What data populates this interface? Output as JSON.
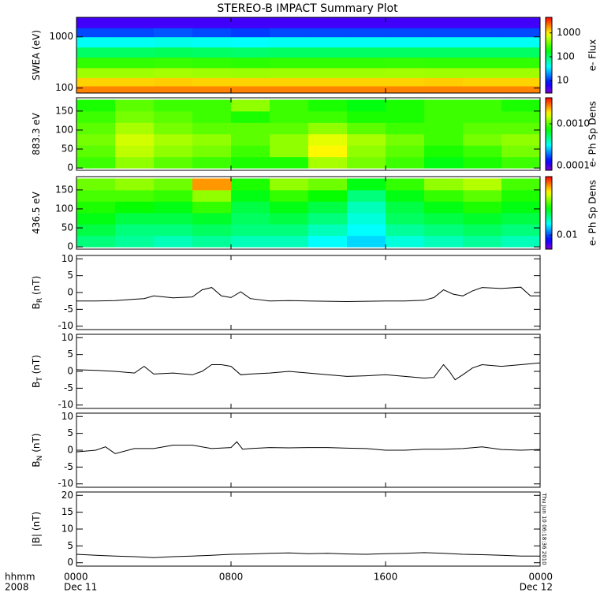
{
  "title": "STEREO-B IMPACT Summary Plot",
  "timestamp": "Thu Jun 10 06:18:36 2010",
  "xaxis": {
    "xlim": [
      0,
      24
    ],
    "xticks": [
      {
        "value": 0,
        "label": "0000"
      },
      {
        "value": 8,
        "label": "0800"
      },
      {
        "value": 16,
        "label": "1600"
      },
      {
        "value": 24,
        "label": "0000"
      }
    ],
    "unit_label": "hhmm",
    "year_label": "2008",
    "start_date": "Dec 11",
    "end_date": "Dec 12"
  },
  "chart_data": [
    {
      "type": "heatmap",
      "ylabel": "SWEA (eV)",
      "log_y": true,
      "ylim": [
        80,
        2400
      ],
      "yticks": [
        100,
        1000
      ],
      "colorbar_label": "e- Flux",
      "clim": [
        3,
        4500
      ],
      "cticks": [
        10,
        100,
        1000
      ],
      "log_c": true,
      "xbins": [
        0,
        2,
        4,
        6,
        8,
        10,
        12,
        14,
        16,
        18,
        20,
        22,
        24
      ],
      "ybins": [
        80,
        110,
        160,
        250,
        400,
        630,
        1000,
        1500,
        2400
      ],
      "values": [
        [
          2000,
          2000,
          2000,
          2000,
          2000,
          2000,
          2000,
          2000,
          2000,
          2000,
          2000,
          2000
        ],
        [
          1200,
          1200,
          1250,
          1200,
          1200,
          1200,
          1200,
          1200,
          1200,
          1250,
          1200,
          1200
        ],
        [
          500,
          500,
          520,
          500,
          490,
          500,
          500,
          500,
          510,
          500,
          500,
          500
        ],
        [
          250,
          250,
          260,
          250,
          240,
          250,
          250,
          250,
          255,
          250,
          250,
          250
        ],
        [
          100,
          100,
          105,
          100,
          95,
          100,
          100,
          100,
          100,
          100,
          100,
          100
        ],
        [
          40,
          40,
          42,
          40,
          38,
          40,
          40,
          40,
          40,
          40,
          40,
          40
        ],
        [
          12,
          12,
          13,
          12,
          11,
          12,
          12,
          12,
          12,
          12,
          12,
          12
        ],
        [
          5,
          5,
          5,
          5,
          5,
          5,
          5,
          5,
          5,
          5,
          5,
          5
        ]
      ]
    },
    {
      "type": "heatmap",
      "ylabel": "883.3 eV",
      "log_y": false,
      "ylim": [
        -6,
        185
      ],
      "yticks": [
        0,
        50,
        100,
        150
      ],
      "colorbar_label": "e- Ph Sp Dens",
      "clim": [
        7.7e-05,
        0.0042
      ],
      "log_c": true,
      "cticks": [
        0.0001,
        {
          "value": 0.001,
          "label": "0.0010"
        }
      ],
      "xbins": [
        0,
        2,
        4,
        6,
        8,
        10,
        12,
        14,
        16,
        18,
        20,
        22,
        24
      ],
      "ybins": [
        0,
        30,
        60,
        90,
        120,
        150,
        180
      ],
      "values": [
        [
          0.0009,
          0.0012,
          0.001,
          0.0009,
          0.0008,
          0.0008,
          0.0013,
          0.0011,
          0.0009,
          0.0007,
          0.0008,
          0.0009
        ],
        [
          0.001,
          0.0014,
          0.0012,
          0.0011,
          0.0009,
          0.0012,
          0.0018,
          0.0012,
          0.001,
          0.0008,
          0.0009,
          0.0011
        ],
        [
          0.0011,
          0.0015,
          0.0013,
          0.0012,
          0.001,
          0.0012,
          0.0016,
          0.0013,
          0.0011,
          0.0009,
          0.0011,
          0.0012
        ],
        [
          0.001,
          0.0013,
          0.0011,
          0.001,
          0.001,
          0.001,
          0.0012,
          0.001,
          0.0009,
          0.0009,
          0.001,
          0.001
        ],
        [
          0.0009,
          0.0011,
          0.001,
          0.0009,
          0.0008,
          0.0009,
          0.0009,
          0.0008,
          0.0008,
          0.0009,
          0.0009,
          0.0009
        ],
        [
          0.0008,
          0.001,
          0.0009,
          0.0009,
          0.0012,
          0.0009,
          0.0008,
          0.0007,
          0.0008,
          0.0009,
          0.0009,
          0.0008
        ]
      ]
    },
    {
      "type": "heatmap",
      "ylabel": "436.5 eV",
      "log_y": false,
      "ylim": [
        -6,
        185
      ],
      "yticks": [
        0,
        50,
        100,
        150
      ],
      "colorbar_label": "e- Ph Sp Dens",
      "clim": [
        0.0065,
        0.06
      ],
      "log_c": true,
      "cticks": [
        0.01
      ],
      "xbins": [
        0,
        2,
        4,
        6,
        8,
        10,
        12,
        14,
        16,
        18,
        20,
        22,
        24
      ],
      "ybins": [
        0,
        30,
        60,
        90,
        120,
        150,
        180
      ],
      "values": [
        [
          0.018,
          0.017,
          0.016,
          0.017,
          0.016,
          0.016,
          0.014,
          0.013,
          0.015,
          0.016,
          0.017,
          0.016
        ],
        [
          0.02,
          0.018,
          0.018,
          0.019,
          0.018,
          0.018,
          0.016,
          0.014,
          0.017,
          0.018,
          0.019,
          0.018
        ],
        [
          0.022,
          0.02,
          0.02,
          0.021,
          0.019,
          0.02,
          0.018,
          0.015,
          0.019,
          0.02,
          0.021,
          0.02
        ],
        [
          0.024,
          0.023,
          0.022,
          0.025,
          0.02,
          0.022,
          0.02,
          0.016,
          0.02,
          0.022,
          0.024,
          0.022
        ],
        [
          0.026,
          0.026,
          0.025,
          0.03,
          0.022,
          0.025,
          0.023,
          0.018,
          0.022,
          0.025,
          0.027,
          0.024
        ],
        [
          0.028,
          0.03,
          0.028,
          0.045,
          0.024,
          0.03,
          0.028,
          0.022,
          0.025,
          0.03,
          0.032,
          0.026
        ]
      ]
    },
    {
      "type": "line",
      "ylabel": "B",
      "ylabel_sub": "R",
      "ylabel_unit": "(nT)",
      "color": "#000000",
      "ylim": [
        -11,
        11
      ],
      "yticks": [
        -10,
        -5,
        0,
        5,
        10
      ],
      "x": [
        0,
        1,
        2,
        3,
        3.5,
        4,
        5,
        6,
        6.5,
        7,
        7.5,
        8,
        8.5,
        9,
        10,
        11,
        12,
        13,
        14,
        15,
        16,
        17,
        18,
        18.5,
        19,
        19.5,
        20,
        20.5,
        21,
        22,
        23,
        23.5,
        24
      ],
      "values": [
        -2.5,
        -2.5,
        -2.4,
        -2,
        -1.8,
        -1,
        -1.6,
        -1.3,
        0.8,
        1.5,
        -1,
        -1.5,
        0.2,
        -1.8,
        -2.5,
        -2.4,
        -2.5,
        -2.6,
        -2.7,
        -2.6,
        -2.5,
        -2.5,
        -2.3,
        -1.5,
        0.8,
        -0.5,
        -1,
        0.5,
        1.5,
        1.2,
        1.6,
        -1,
        -1
      ]
    },
    {
      "type": "line",
      "ylabel": "B",
      "ylabel_sub": "T",
      "ylabel_unit": "(nT)",
      "color": "#000000",
      "ylim": [
        -11,
        11
      ],
      "yticks": [
        -10,
        -5,
        0,
        5,
        10
      ],
      "x": [
        0,
        1,
        2,
        3,
        3.5,
        4,
        5,
        6,
        6.5,
        7,
        7.5,
        8,
        8.5,
        9,
        10,
        11,
        12,
        13,
        14,
        15,
        16,
        17,
        18,
        18.5,
        19,
        19.3,
        19.6,
        20,
        20.5,
        21,
        22,
        23,
        24
      ],
      "values": [
        0.5,
        0.3,
        0,
        -0.5,
        1.5,
        -0.8,
        -0.5,
        -1,
        0,
        2,
        2,
        1.5,
        -1,
        -0.8,
        -0.5,
        0,
        -0.5,
        -1,
        -1.5,
        -1.3,
        -1,
        -1.5,
        -2,
        -1.8,
        2,
        0,
        -2.5,
        -1,
        1,
        2,
        1.5,
        2,
        2.5
      ]
    },
    {
      "type": "line",
      "ylabel": "B",
      "ylabel_sub": "N",
      "ylabel_unit": "(nT)",
      "color": "#000000",
      "ylim": [
        -11,
        11
      ],
      "yticks": [
        -10,
        -5,
        0,
        5,
        10
      ],
      "x": [
        0,
        1,
        1.5,
        2,
        3,
        4,
        5,
        6,
        7,
        8,
        8.3,
        8.6,
        9,
        10,
        11,
        12,
        13,
        14,
        15,
        16,
        17,
        18,
        19,
        20,
        21,
        22,
        23,
        24
      ],
      "values": [
        -0.5,
        0,
        1,
        -1,
        0.5,
        0.5,
        1.5,
        1.5,
        0.5,
        0.8,
        2.5,
        0.3,
        0.5,
        0.8,
        0.7,
        0.8,
        0.8,
        0.6,
        0.5,
        0,
        0,
        0.3,
        0.3,
        0.5,
        1,
        0.2,
        0,
        0.2
      ]
    },
    {
      "type": "line",
      "ylabel": "|B| (nT)",
      "color": "#000000",
      "ylim": [
        -1,
        21
      ],
      "yticks": [
        0,
        5,
        10,
        15,
        20
      ],
      "x": [
        0,
        1,
        2,
        3,
        4,
        5,
        6,
        7,
        8,
        9,
        10,
        11,
        12,
        13,
        14,
        15,
        16,
        17,
        18,
        19,
        20,
        21,
        22,
        23,
        24
      ],
      "values": [
        2.5,
        2.2,
        2,
        1.8,
        1.5,
        1.8,
        2,
        2.2,
        2.5,
        2.6,
        2.8,
        2.9,
        2.7,
        2.8,
        2.6,
        2.5,
        2.7,
        2.8,
        3,
        2.8,
        2.5,
        2.4,
        2.2,
        2,
        2
      ]
    }
  ]
}
